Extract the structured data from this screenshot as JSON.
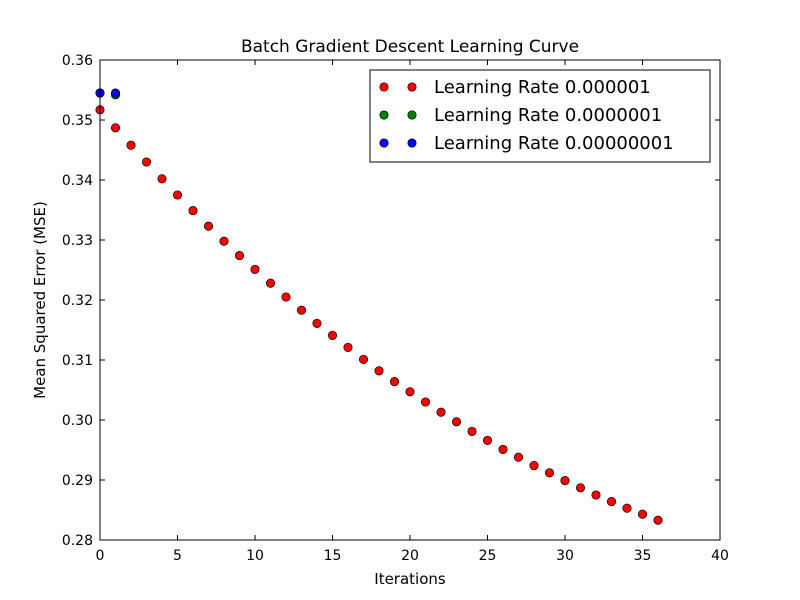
{
  "chart_data": {
    "type": "scatter",
    "title": "Batch Gradient Descent Learning Curve",
    "xlabel": "Iterations",
    "ylabel": "Mean Squared Error (MSE)",
    "xlim": [
      0,
      40
    ],
    "ylim": [
      0.28,
      0.36
    ],
    "xticks": [
      "0",
      "5",
      "10",
      "15",
      "20",
      "25",
      "30",
      "35",
      "40"
    ],
    "yticks": [
      "0.28",
      "0.29",
      "0.30",
      "0.31",
      "0.32",
      "0.33",
      "0.34",
      "0.35",
      "0.36"
    ],
    "grid": false,
    "legend_position": "top-right",
    "series": [
      {
        "name": "Learning Rate 0.000001",
        "color": "#ff0000",
        "x": [
          0,
          1,
          2,
          3,
          4,
          5,
          6,
          7,
          8,
          9,
          10,
          11,
          12,
          13,
          14,
          15,
          16,
          17,
          18,
          19,
          20,
          21,
          22,
          23,
          24,
          25,
          26,
          27,
          28,
          29,
          30,
          31,
          32,
          33,
          34,
          35,
          36
        ],
        "y": [
          0.3517,
          0.3487,
          0.3458,
          0.343,
          0.3402,
          0.3375,
          0.3349,
          0.3323,
          0.3298,
          0.3274,
          0.3251,
          0.3228,
          0.3205,
          0.3183,
          0.3161,
          0.3141,
          0.3121,
          0.3101,
          0.3082,
          0.3064,
          0.3047,
          0.303,
          0.3013,
          0.2997,
          0.2981,
          0.2966,
          0.2951,
          0.2938,
          0.2924,
          0.2912,
          0.2899,
          0.2887,
          0.2875,
          0.2864,
          0.2853,
          0.2843,
          0.2833
        ]
      },
      {
        "name": "Learning Rate 0.0000001",
        "color": "#008000",
        "x": [
          0,
          1
        ],
        "y": [
          0.3545,
          0.3542
        ]
      },
      {
        "name": "Learning Rate 0.00000001",
        "color": "#0000ff",
        "x": [
          0,
          1
        ],
        "y": [
          0.3545,
          0.3545
        ]
      }
    ]
  }
}
